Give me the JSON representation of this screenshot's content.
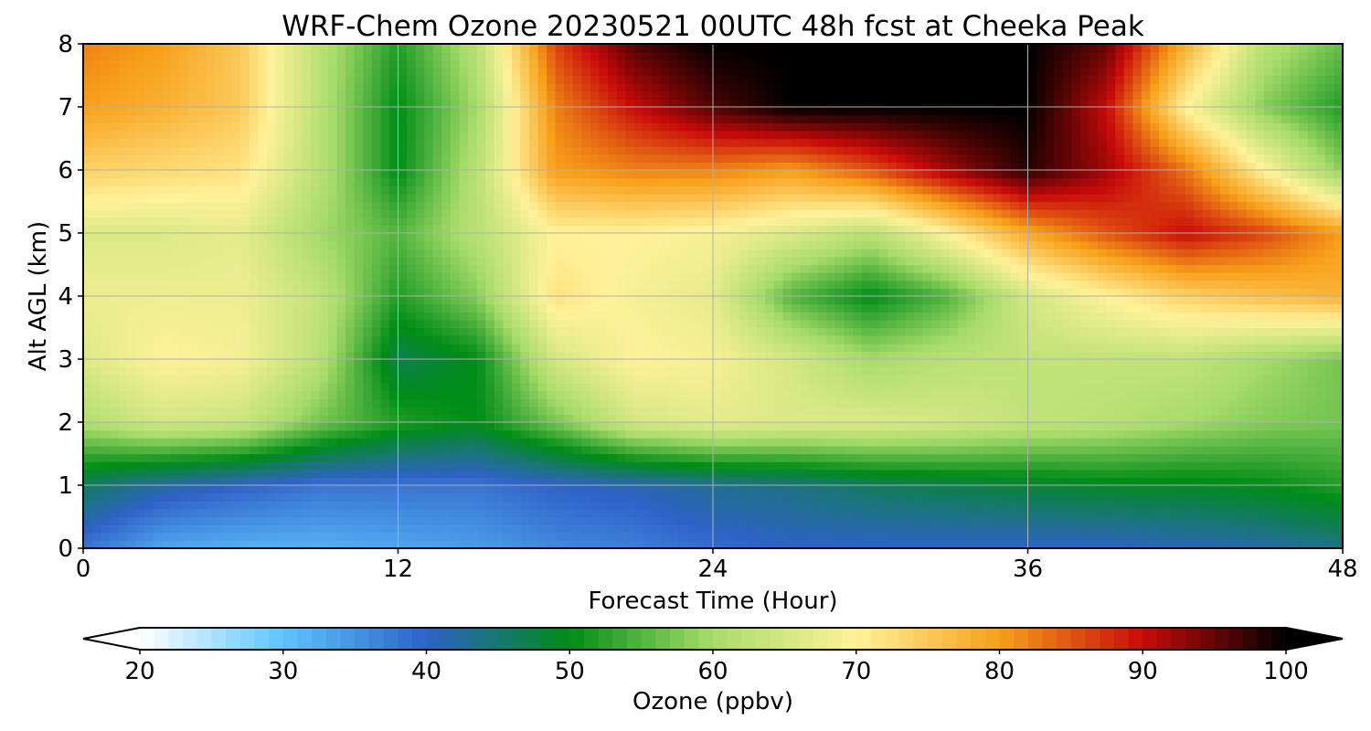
{
  "chart_data": {
    "type": "heatmap",
    "title": "WRF-Chem Ozone  20230521 00UTC 48h fcst at Cheeka Peak",
    "xlabel": "Forecast Time (Hour)",
    "ylabel": "Alt AGL (km)",
    "xlim": [
      0,
      48
    ],
    "ylim": [
      0,
      8
    ],
    "xticks": [
      "0",
      "12",
      "24",
      "36",
      "48"
    ],
    "yticks": [
      "0",
      "1",
      "2",
      "3",
      "4",
      "5",
      "6",
      "7",
      "8"
    ],
    "grid": true,
    "x_hours": [
      0,
      3,
      6,
      9,
      12,
      15,
      18,
      21,
      24,
      27,
      30,
      33,
      36,
      39,
      42,
      45,
      48
    ],
    "y_km": [
      0,
      1,
      2,
      3,
      4,
      5,
      6,
      7,
      8
    ],
    "ozone_ppbv_rows_by_altitude": [
      [
        38,
        33,
        32,
        32,
        33,
        34,
        36,
        37,
        39,
        40,
        40,
        40,
        40,
        40,
        41,
        42,
        44
      ],
      [
        46,
        42,
        40,
        38,
        38,
        38,
        40,
        41,
        43,
        44,
        46,
        47,
        48,
        49,
        49,
        50,
        52
      ],
      [
        61,
        65,
        64,
        57,
        52,
        50,
        57,
        65,
        67,
        66,
        66,
        65,
        63,
        62,
        60,
        58,
        57
      ],
      [
        66,
        70,
        69,
        62,
        47,
        50,
        65,
        70,
        69,
        65,
        60,
        62,
        63,
        63,
        63,
        60,
        57
      ],
      [
        68,
        68,
        68,
        63,
        52,
        58,
        72,
        69,
        67,
        55,
        50,
        55,
        65,
        70,
        74,
        76,
        78
      ],
      [
        66,
        66,
        67,
        60,
        55,
        62,
        70,
        70,
        69,
        66,
        62,
        70,
        79,
        85,
        90,
        86,
        80
      ],
      [
        74,
        73,
        72,
        62,
        50,
        62,
        80,
        82,
        82,
        80,
        85,
        92,
        98,
        92,
        83,
        70,
        58
      ],
      [
        80,
        78,
        75,
        62,
        50,
        60,
        82,
        90,
        96,
        100,
        100,
        100,
        100,
        90,
        70,
        58,
        52
      ],
      [
        82,
        80,
        75,
        62,
        52,
        62,
        86,
        96,
        100,
        100,
        100,
        100,
        100,
        95,
        78,
        62,
        56
      ]
    ],
    "colorbar": {
      "label": "Ozone  (ppbv)",
      "range": [
        20,
        100
      ],
      "ticks": [
        "20",
        "30",
        "40",
        "50",
        "60",
        "70",
        "80",
        "90",
        "100"
      ],
      "extend": "both",
      "colors": [
        "#ffffff",
        "#5ec4ff",
        "#2f62c8",
        "#008c18",
        "#a8dc6a",
        "#fff29a",
        "#f7a01a",
        "#c80a0a",
        "#000000"
      ]
    }
  }
}
